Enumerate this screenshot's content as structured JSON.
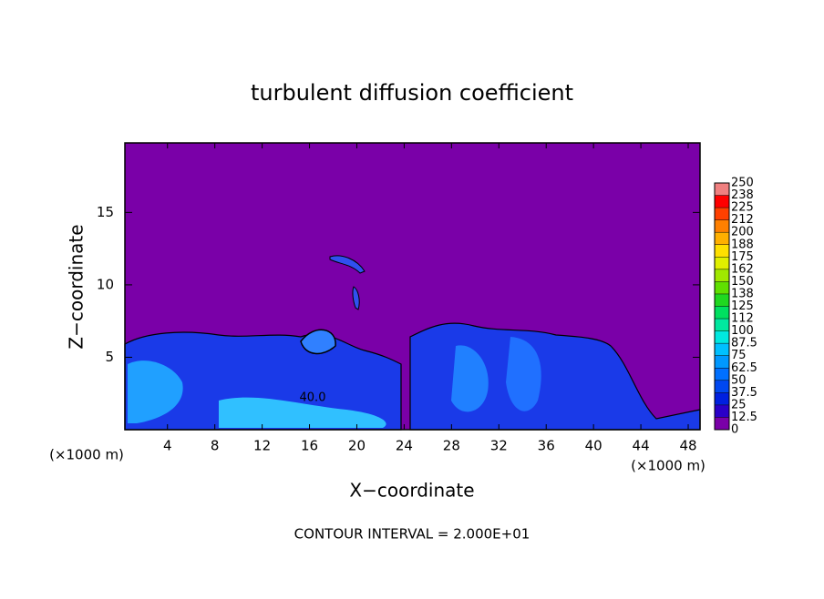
{
  "chart_data": {
    "type": "contour",
    "title": "turbulent diffusion coefficient",
    "x_label": "X−coordinate",
    "y_label": "Z−coordinate",
    "x_unit": "(×1000 m)",
    "y_unit": "(×1000 m)",
    "footnote": "CONTOUR INTERVAL = 2.000E+01",
    "contour_label": "40.0",
    "xlim": [
      0.4,
      49
    ],
    "xticks": [
      4,
      8,
      12,
      16,
      20,
      24,
      28,
      32,
      36,
      40,
      44,
      48
    ],
    "ylim": [
      0,
      19.8
    ],
    "yticks": [
      5,
      10,
      15
    ],
    "colorbar": {
      "lim": [
        0,
        250
      ],
      "ticks": [
        0,
        12.5,
        25,
        37.5,
        50,
        62.5,
        75,
        87.5,
        100,
        {
          "value": 112.5,
          "label": "112"
        },
        125,
        {
          "value": 137.5,
          "label": "138"
        },
        150,
        {
          "value": 162.5,
          "label": "162"
        },
        175,
        {
          "value": 187.5,
          "label": "188"
        },
        200,
        {
          "value": 212.5,
          "label": "212"
        },
        225,
        {
          "value": 237.5,
          "label": "238"
        },
        250
      ],
      "colors": [
        "#7a00a8",
        "#2a00c8",
        "#0020e0",
        "#0048f0",
        "#0070ff",
        "#0098ff",
        "#00c0ff",
        "#00e8e0",
        "#00e8a0",
        "#00e060",
        "#20d820",
        "#60e000",
        "#a0e800",
        "#e0f000",
        "#ffe000",
        "#ffb000",
        "#ff8000",
        "#ff4000",
        "#ff0000",
        "#f08080"
      ]
    }
  }
}
